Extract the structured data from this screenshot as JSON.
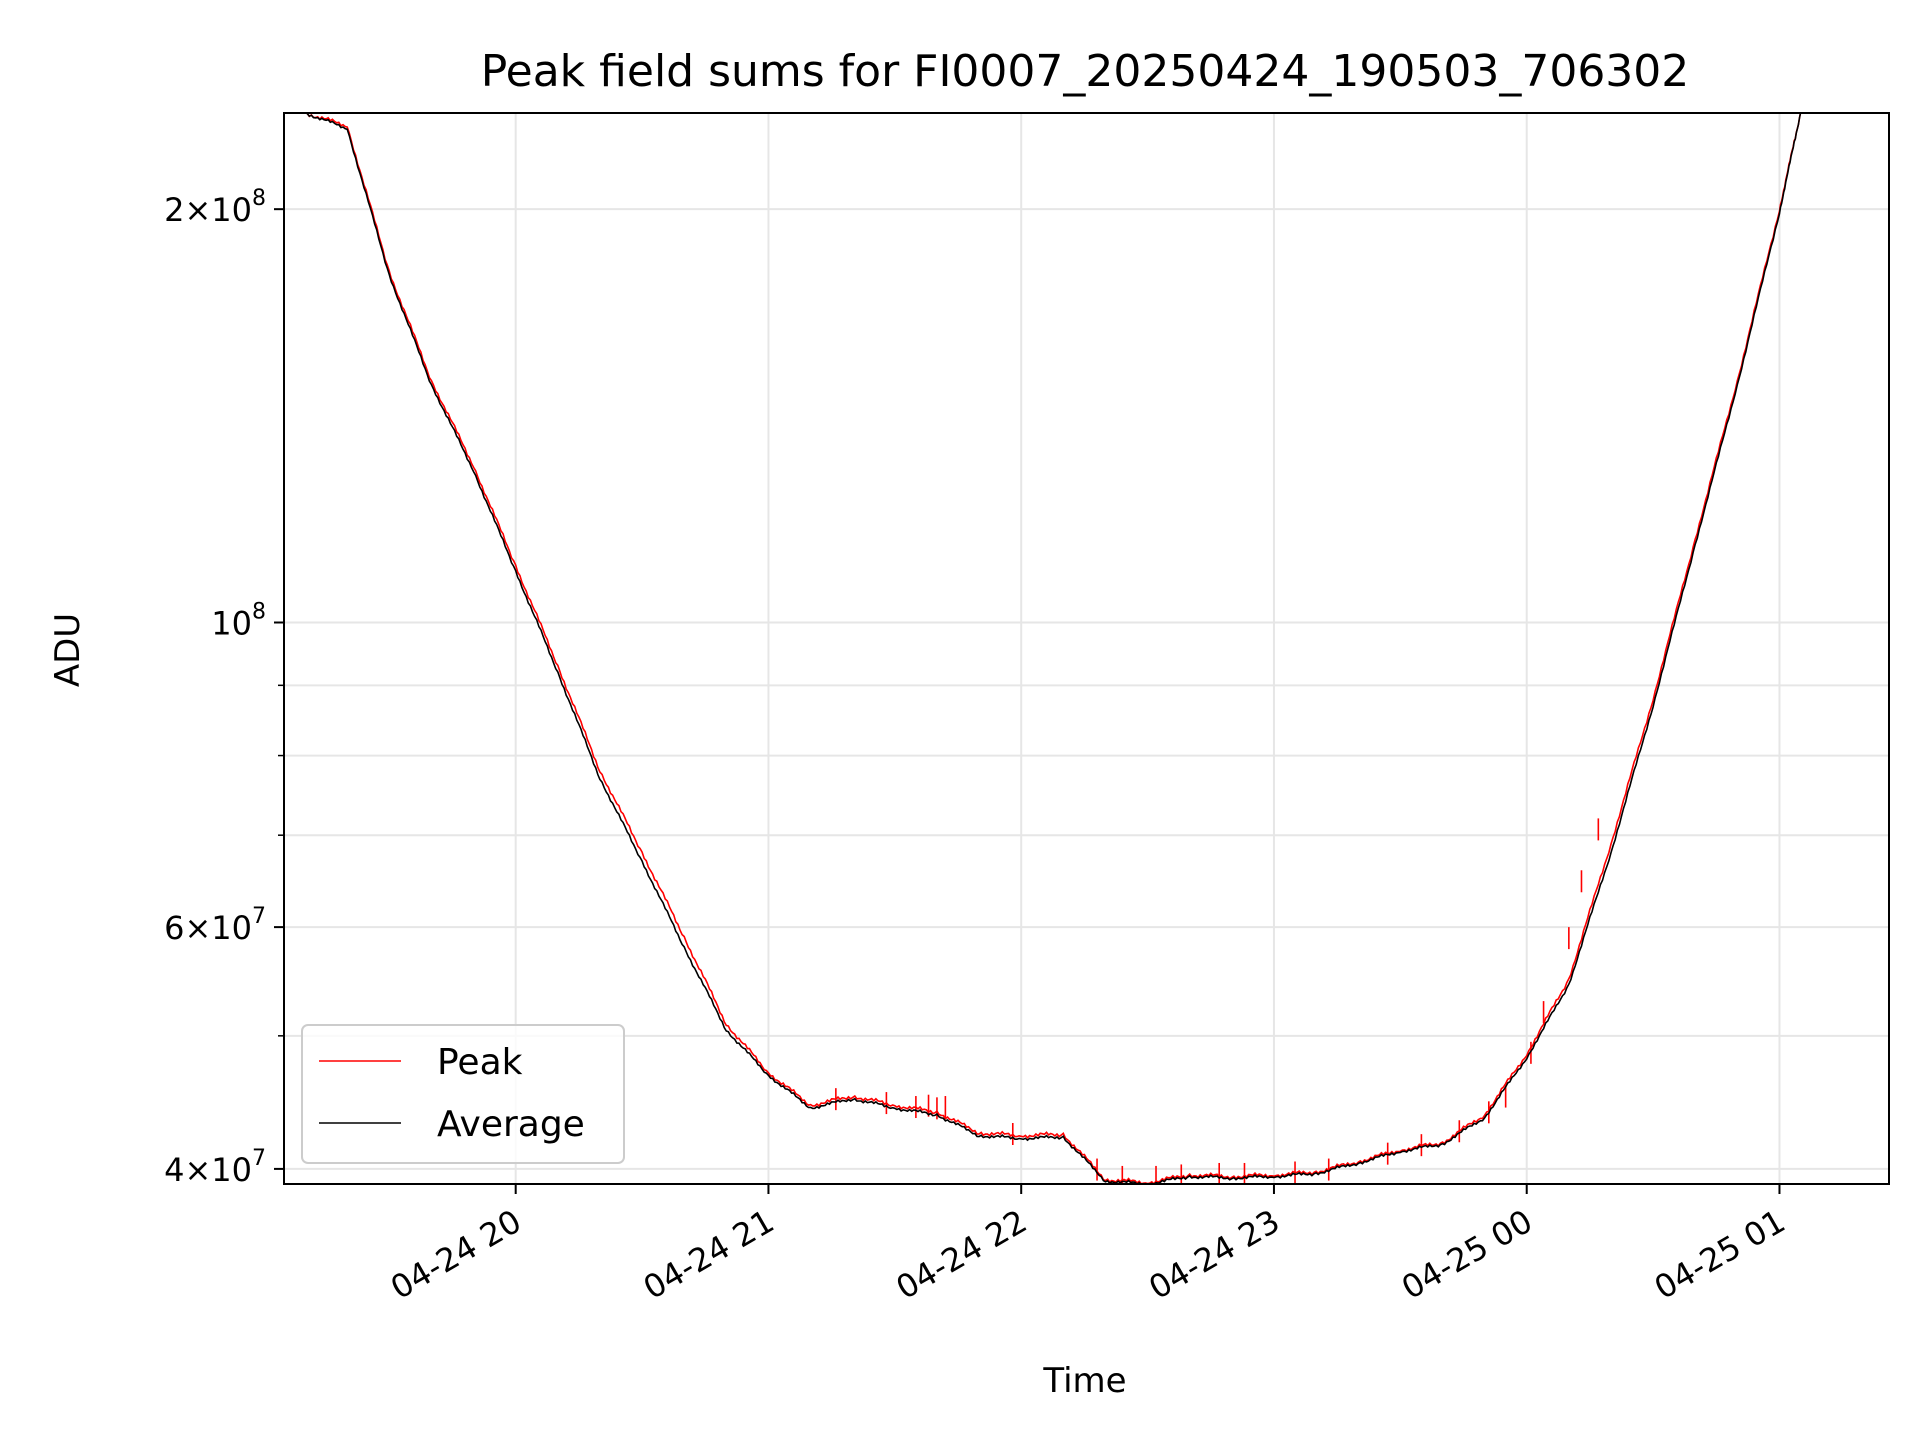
{
  "chart_data": {
    "type": "line",
    "title": "Peak field sums for FI0007_20250424_190503_706302",
    "xlabel": "Time",
    "ylabel": "ADU",
    "yscale": "log",
    "xlim": [
      "2025-04-24 19:05",
      "2025-04-25 01:26"
    ],
    "ylim": [
      39000000,
      235000000
    ],
    "x_ticks": [
      {
        "t": "2025-04-24 20:00",
        "label": "04-24 20"
      },
      {
        "t": "2025-04-24 21:00",
        "label": "04-24 21"
      },
      {
        "t": "2025-04-24 22:00",
        "label": "04-24 22"
      },
      {
        "t": "2025-04-24 23:00",
        "label": "04-24 23"
      },
      {
        "t": "2025-04-25 00:00",
        "label": "04-25 00"
      },
      {
        "t": "2025-04-25 01:00",
        "label": "04-25 01"
      }
    ],
    "y_major_ticks": [
      {
        "v": 40000000,
        "mant": "4",
        "exp": "7"
      },
      {
        "v": 60000000,
        "mant": "6",
        "exp": "7"
      },
      {
        "v": 100000000,
        "mant": "",
        "exp": "8"
      },
      {
        "v": 200000000,
        "mant": "2",
        "exp": "8"
      }
    ],
    "y_minor_ticks": [
      50000000,
      70000000,
      80000000,
      90000000
    ],
    "grid": true,
    "legend_position": "lower-left",
    "colors": {
      "peak": "#ff0000",
      "average": "#000000"
    },
    "x": [
      "2025-04-24 19:10",
      "2025-04-24 19:20",
      "2025-04-24 19:30",
      "2025-04-24 19:40",
      "2025-04-24 19:50",
      "2025-04-24 20:00",
      "2025-04-24 20:10",
      "2025-04-24 20:20",
      "2025-04-24 20:30",
      "2025-04-24 20:40",
      "2025-04-24 20:50",
      "2025-04-24 21:00",
      "2025-04-24 21:10",
      "2025-04-24 21:20",
      "2025-04-24 21:30",
      "2025-04-24 21:40",
      "2025-04-24 21:50",
      "2025-04-24 22:00",
      "2025-04-24 22:10",
      "2025-04-24 22:20",
      "2025-04-24 22:30",
      "2025-04-24 22:40",
      "2025-04-24 22:50",
      "2025-04-24 23:00",
      "2025-04-24 23:10",
      "2025-04-24 23:20",
      "2025-04-24 23:30",
      "2025-04-24 23:40",
      "2025-04-24 23:50",
      "2025-04-25 00:00",
      "2025-04-25 00:10",
      "2025-04-25 00:20",
      "2025-04-25 00:30",
      "2025-04-25 00:40",
      "2025-04-25 00:50",
      "2025-04-25 01:00",
      "2025-04-25 01:05"
    ],
    "series": [
      {
        "name": "Peak",
        "values": [
          235000000,
          230000000,
          180000000,
          150000000,
          130000000,
          110000000,
          93000000,
          78000000,
          68000000,
          59000000,
          51000000,
          47000000,
          44500000,
          45200000,
          44500000,
          44000000,
          42500000,
          42300000,
          42400000,
          39300000,
          39100000,
          39600000,
          39500000,
          39600000,
          39800000,
          40500000,
          41300000,
          41800000,
          43800000,
          48500000,
          55000000,
          69000000,
          88000000,
          115000000,
          150000000,
          200000000,
          235000000
        ],
        "spikes": [
          {
            "t": "2025-04-24 21:16",
            "v": 45800000
          },
          {
            "t": "2025-04-24 21:28",
            "v": 45500000
          },
          {
            "t": "2025-04-24 21:35",
            "v": 45200000
          },
          {
            "t": "2025-04-24 21:38",
            "v": 45300000
          },
          {
            "t": "2025-04-24 21:40",
            "v": 45100000
          },
          {
            "t": "2025-04-24 21:42",
            "v": 45200000
          },
          {
            "t": "2025-04-24 21:58",
            "v": 43200000
          },
          {
            "t": "2025-04-24 22:18",
            "v": 40700000
          },
          {
            "t": "2025-04-24 22:24",
            "v": 40200000
          },
          {
            "t": "2025-04-24 22:32",
            "v": 40200000
          },
          {
            "t": "2025-04-24 22:38",
            "v": 40300000
          },
          {
            "t": "2025-04-24 22:47",
            "v": 40400000
          },
          {
            "t": "2025-04-24 22:53",
            "v": 40400000
          },
          {
            "t": "2025-04-24 23:05",
            "v": 40500000
          },
          {
            "t": "2025-04-24 23:13",
            "v": 40700000
          },
          {
            "t": "2025-04-24 23:27",
            "v": 41800000
          },
          {
            "t": "2025-04-24 23:35",
            "v": 42400000
          },
          {
            "t": "2025-04-24 23:44",
            "v": 43400000
          },
          {
            "t": "2025-04-24 23:51",
            "v": 44800000
          },
          {
            "t": "2025-04-24 23:55",
            "v": 46000000
          },
          {
            "t": "2025-04-25 00:01",
            "v": 49500000
          },
          {
            "t": "2025-04-25 00:04",
            "v": 53000000
          },
          {
            "t": "2025-04-25 00:10",
            "v": 60000000
          },
          {
            "t": "2025-04-25 00:13",
            "v": 66000000
          },
          {
            "t": "2025-04-25 00:17",
            "v": 72000000
          }
        ]
      },
      {
        "name": "Average",
        "values": [
          235000000,
          229000000,
          179000000,
          149000000,
          129000000,
          109000000,
          92000000,
          77000000,
          67000000,
          58000000,
          50500000,
          46800000,
          44300000,
          45000000,
          44300000,
          43800000,
          42300000,
          42100000,
          42200000,
          39200000,
          39000000,
          39500000,
          39400000,
          39500000,
          39700000,
          40400000,
          41200000,
          41700000,
          43600000,
          48200000,
          54500000,
          68000000,
          87000000,
          114000000,
          149000000,
          199000000,
          235000000
        ]
      }
    ]
  }
}
